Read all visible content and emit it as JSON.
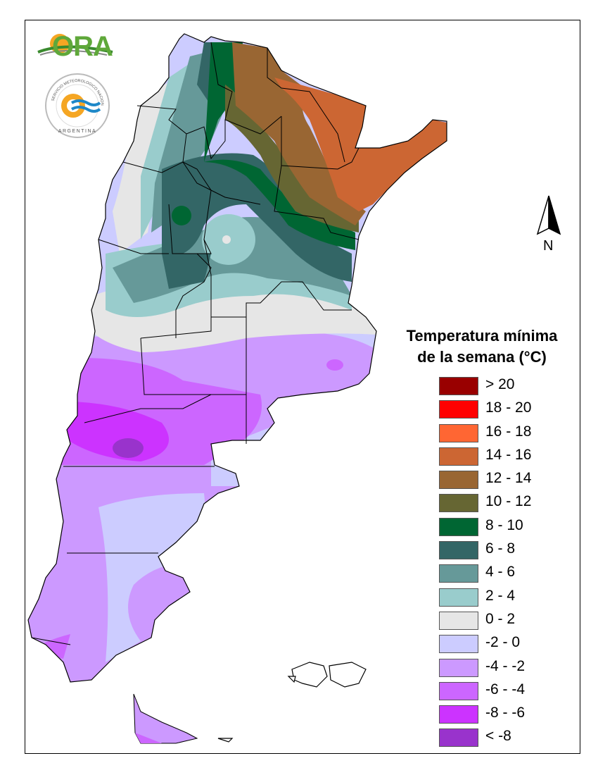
{
  "map": {
    "region": "Argentina",
    "north_label": "N"
  },
  "logos": {
    "ora_text": "ORA",
    "seal_outer_text": "SERVICIO METEOROLOGICO NACIONAL",
    "seal_bottom_text": "ARGENTINA"
  },
  "legend": {
    "title_line1": "Temperatura mínima",
    "title_line2": "de la semana (°C)",
    "items": [
      {
        "label": "> 20",
        "color": "#990000"
      },
      {
        "label": "18 - 20",
        "color": "#ff0000"
      },
      {
        "label": "16 - 18",
        "color": "#ff6633"
      },
      {
        "label": "14 - 16",
        "color": "#cc6633"
      },
      {
        "label": "12 - 14",
        "color": "#996633"
      },
      {
        "label": "10 - 12",
        "color": "#666633"
      },
      {
        "label": "8 - 10",
        "color": "#006633"
      },
      {
        "label": "6 - 8",
        "color": "#336666"
      },
      {
        "label": "4 - 6",
        "color": "#669999"
      },
      {
        "label": "2 - 4",
        "color": "#99cccc"
      },
      {
        "label": "0 - 2",
        "color": "#e6e6e6"
      },
      {
        "label": "-2 - 0",
        "color": "#ccccff"
      },
      {
        "label": "-4 - -2",
        "color": "#cc99ff"
      },
      {
        "label": "-6 - -4",
        "color": "#cc66ff"
      },
      {
        "label": "-8 - -6",
        "color": "#cc33ff"
      },
      {
        "label": "< -8",
        "color": "#9933cc"
      }
    ]
  }
}
